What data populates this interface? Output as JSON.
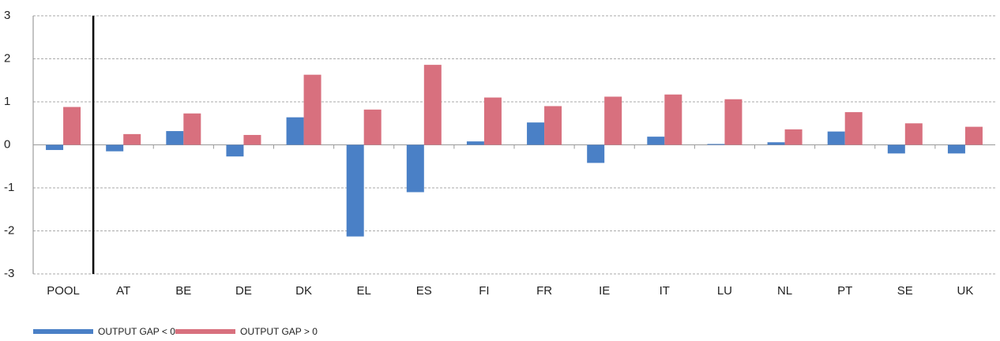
{
  "chart_data": {
    "type": "bar",
    "categories": [
      "POOL",
      "AT",
      "BE",
      "DE",
      "DK",
      "EL",
      "ES",
      "FI",
      "FR",
      "IE",
      "IT",
      "LU",
      "NL",
      "PT",
      "SE",
      "UK"
    ],
    "series": [
      {
        "name": "OUTPUT GAP < 0",
        "color": "#4a80c6",
        "values": [
          -0.12,
          -0.15,
          0.32,
          -0.27,
          0.64,
          -2.13,
          -1.1,
          0.08,
          0.52,
          -0.42,
          0.19,
          0.02,
          0.06,
          0.31,
          -0.2,
          -0.2
        ]
      },
      {
        "name": "OUTPUT GAP > 0",
        "color": "#d8707e",
        "values": [
          0.88,
          0.25,
          0.73,
          0.23,
          1.63,
          0.82,
          1.86,
          1.1,
          0.9,
          1.12,
          1.17,
          1.06,
          0.36,
          0.76,
          0.5,
          0.42
        ]
      }
    ],
    "ylim": [
      -3,
      3
    ],
    "yticks": [
      -3,
      -2,
      -1,
      0,
      1,
      2,
      3
    ],
    "grid": true,
    "legend": "bottom-left"
  }
}
